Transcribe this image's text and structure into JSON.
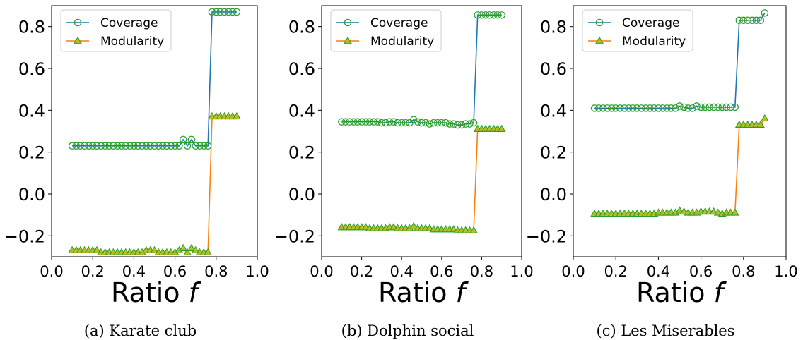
{
  "chart_data": [
    {
      "type": "line",
      "caption": "(a) Karate club",
      "xlabel": "Ratio",
      "xlabel_var": "f",
      "xlim": [
        0.0,
        1.0
      ],
      "ylim": [
        -0.3,
        0.9
      ],
      "xticks": [
        "0.0",
        "0.2",
        "0.4",
        "0.6",
        "0.8",
        "1.0"
      ],
      "yticks": [
        "−0.2",
        "0.0",
        "0.2",
        "0.4",
        "0.6",
        "0.8"
      ],
      "legend_position": "top-left",
      "x": [
        0.1,
        0.12,
        0.14,
        0.16,
        0.18,
        0.2,
        0.22,
        0.24,
        0.26,
        0.28,
        0.3,
        0.32,
        0.34,
        0.36,
        0.38,
        0.4,
        0.42,
        0.44,
        0.46,
        0.48,
        0.5,
        0.52,
        0.54,
        0.56,
        0.58,
        0.6,
        0.62,
        0.64,
        0.66,
        0.68,
        0.7,
        0.72,
        0.74,
        0.76,
        0.78,
        0.8,
        0.82,
        0.84,
        0.86,
        0.88,
        0.9
      ],
      "series": [
        {
          "name": "Coverage",
          "values": [
            0.23,
            0.23,
            0.23,
            0.23,
            0.23,
            0.23,
            0.23,
            0.23,
            0.23,
            0.23,
            0.23,
            0.23,
            0.23,
            0.23,
            0.23,
            0.23,
            0.23,
            0.23,
            0.23,
            0.23,
            0.23,
            0.23,
            0.23,
            0.23,
            0.23,
            0.23,
            0.23,
            0.26,
            0.23,
            0.26,
            0.23,
            0.23,
            0.23,
            0.23,
            0.87,
            0.87,
            0.87,
            0.87,
            0.87,
            0.87,
            0.87
          ]
        },
        {
          "name": "Modularity",
          "values": [
            -0.27,
            -0.27,
            -0.27,
            -0.27,
            -0.27,
            -0.27,
            -0.27,
            -0.28,
            -0.28,
            -0.28,
            -0.28,
            -0.28,
            -0.28,
            -0.28,
            -0.28,
            -0.28,
            -0.28,
            -0.28,
            -0.27,
            -0.27,
            -0.27,
            -0.28,
            -0.28,
            -0.28,
            -0.28,
            -0.28,
            -0.27,
            -0.26,
            -0.28,
            -0.26,
            -0.27,
            -0.28,
            -0.28,
            -0.28,
            0.37,
            0.37,
            0.37,
            0.37,
            0.37,
            0.37,
            0.37
          ]
        }
      ]
    },
    {
      "type": "line",
      "caption": "(b) Dolphin social",
      "xlabel": "Ratio",
      "xlabel_var": "f",
      "xlim": [
        0.0,
        1.0
      ],
      "ylim": [
        -0.3,
        0.9
      ],
      "xticks": [
        "0.0",
        "0.2",
        "0.4",
        "0.6",
        "0.8",
        "1.0"
      ],
      "yticks": [
        "−0.2",
        "0.0",
        "0.2",
        "0.4",
        "0.6",
        "0.8"
      ],
      "legend_position": "top-left",
      "x": [
        0.1,
        0.12,
        0.14,
        0.16,
        0.18,
        0.2,
        0.22,
        0.24,
        0.26,
        0.28,
        0.3,
        0.32,
        0.34,
        0.36,
        0.38,
        0.4,
        0.42,
        0.44,
        0.46,
        0.48,
        0.5,
        0.52,
        0.54,
        0.56,
        0.58,
        0.6,
        0.62,
        0.64,
        0.66,
        0.68,
        0.7,
        0.72,
        0.74,
        0.76,
        0.78,
        0.8,
        0.82,
        0.84,
        0.86,
        0.88,
        0.9
      ],
      "series": [
        {
          "name": "Coverage",
          "values": [
            0.345,
            0.345,
            0.345,
            0.345,
            0.345,
            0.345,
            0.345,
            0.345,
            0.345,
            0.345,
            0.34,
            0.34,
            0.345,
            0.345,
            0.34,
            0.34,
            0.34,
            0.34,
            0.355,
            0.345,
            0.34,
            0.34,
            0.335,
            0.34,
            0.34,
            0.34,
            0.34,
            0.335,
            0.335,
            0.33,
            0.33,
            0.335,
            0.335,
            0.34,
            0.855,
            0.855,
            0.855,
            0.855,
            0.855,
            0.855,
            0.855
          ]
        },
        {
          "name": "Modularity",
          "values": [
            -0.16,
            -0.16,
            -0.16,
            -0.16,
            -0.16,
            -0.16,
            -0.16,
            -0.165,
            -0.165,
            -0.165,
            -0.165,
            -0.165,
            -0.16,
            -0.16,
            -0.165,
            -0.165,
            -0.165,
            -0.165,
            -0.155,
            -0.165,
            -0.165,
            -0.165,
            -0.165,
            -0.17,
            -0.17,
            -0.17,
            -0.17,
            -0.17,
            -0.17,
            -0.175,
            -0.175,
            -0.175,
            -0.175,
            -0.175,
            0.31,
            0.31,
            0.31,
            0.31,
            0.31,
            0.31,
            0.31
          ]
        }
      ]
    },
    {
      "type": "line",
      "caption": "(c) Les Miserables",
      "xlabel": "Ratio",
      "xlabel_var": "f",
      "xlim": [
        0.0,
        1.0
      ],
      "ylim": [
        -0.3,
        0.9
      ],
      "xticks": [
        "0.0",
        "0.2",
        "0.4",
        "0.6",
        "0.8",
        "1.0"
      ],
      "yticks": [
        "−0.2",
        "0.0",
        "0.2",
        "0.4",
        "0.6",
        "0.8"
      ],
      "legend_position": "top-left",
      "x": [
        0.1,
        0.12,
        0.14,
        0.16,
        0.18,
        0.2,
        0.22,
        0.24,
        0.26,
        0.28,
        0.3,
        0.32,
        0.34,
        0.36,
        0.38,
        0.4,
        0.42,
        0.44,
        0.46,
        0.48,
        0.5,
        0.52,
        0.54,
        0.56,
        0.58,
        0.6,
        0.62,
        0.64,
        0.66,
        0.68,
        0.7,
        0.72,
        0.74,
        0.76,
        0.78,
        0.8,
        0.82,
        0.84,
        0.86,
        0.88,
        0.9
      ],
      "series": [
        {
          "name": "Coverage",
          "values": [
            0.41,
            0.41,
            0.41,
            0.41,
            0.41,
            0.41,
            0.41,
            0.41,
            0.41,
            0.41,
            0.41,
            0.41,
            0.41,
            0.41,
            0.41,
            0.41,
            0.41,
            0.41,
            0.41,
            0.41,
            0.42,
            0.415,
            0.41,
            0.41,
            0.42,
            0.415,
            0.415,
            0.415,
            0.415,
            0.415,
            0.415,
            0.415,
            0.415,
            0.415,
            0.83,
            0.83,
            0.83,
            0.83,
            0.83,
            0.83,
            0.865
          ]
        },
        {
          "name": "Modularity",
          "values": [
            -0.095,
            -0.095,
            -0.095,
            -0.095,
            -0.095,
            -0.095,
            -0.095,
            -0.095,
            -0.095,
            -0.095,
            -0.095,
            -0.095,
            -0.095,
            -0.095,
            -0.095,
            -0.09,
            -0.09,
            -0.09,
            -0.09,
            -0.09,
            -0.08,
            -0.085,
            -0.09,
            -0.09,
            -0.09,
            -0.085,
            -0.085,
            -0.085,
            -0.085,
            -0.09,
            -0.095,
            -0.09,
            -0.09,
            -0.09,
            0.33,
            0.33,
            0.33,
            0.33,
            0.33,
            0.33,
            0.36
          ]
        }
      ]
    }
  ],
  "colors": {
    "coverage_line": "#1f77b4",
    "coverage_marker": "#2ca02c",
    "modularity_line": "#ff7f0e",
    "modularity_marker_edge": "#2ca02c",
    "modularity_marker_fill": "#bcbd22"
  }
}
